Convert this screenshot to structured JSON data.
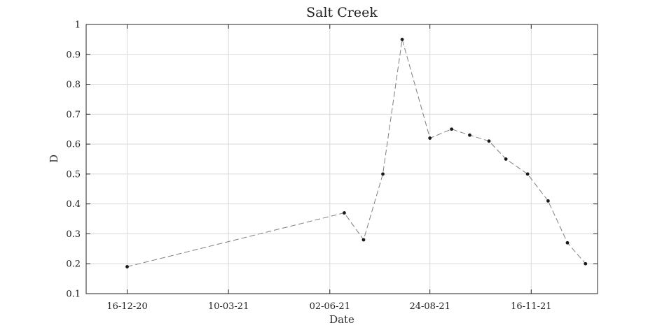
{
  "chart_data": {
    "type": "line",
    "title": "Salt Creek",
    "xlabel": "Date",
    "ylabel": "D",
    "xlim": [
      "2020-11-12",
      "2022-01-10"
    ],
    "ylim": [
      0.1,
      1.0
    ],
    "grid": true,
    "x_tick_labels": [
      "16-12-20",
      "10-03-21",
      "02-06-21",
      "24-08-21",
      "16-11-21"
    ],
    "x_tick_dates": [
      "2020-12-16",
      "2021-03-10",
      "2021-06-02",
      "2021-08-24",
      "2021-11-16"
    ],
    "y_ticks": [
      0.1,
      0.2,
      0.3,
      0.4,
      0.5,
      0.6,
      0.7,
      0.8,
      0.9,
      1.0
    ],
    "y_tick_labels": [
      "0.1",
      "0.2",
      "0.3",
      "0.4",
      "0.5",
      "0.6",
      "0.7",
      "0.8",
      "0.9",
      "1"
    ],
    "series": [
      {
        "color": "#7f7f7f",
        "marker_color": "#1a1a1a",
        "line_style": "dashed",
        "x": [
          "2020-12-16",
          "2021-06-14",
          "2021-06-30",
          "2021-07-16",
          "2021-08-01",
          "2021-08-24",
          "2021-09-11",
          "2021-09-26",
          "2021-10-12",
          "2021-10-26",
          "2021-11-13",
          "2021-11-30",
          "2021-12-16",
          "2021-12-31"
        ],
        "y": [
          0.19,
          0.37,
          0.28,
          0.5,
          0.95,
          0.62,
          0.65,
          0.63,
          0.61,
          0.55,
          0.5,
          0.41,
          0.27,
          0.2
        ]
      }
    ]
  }
}
